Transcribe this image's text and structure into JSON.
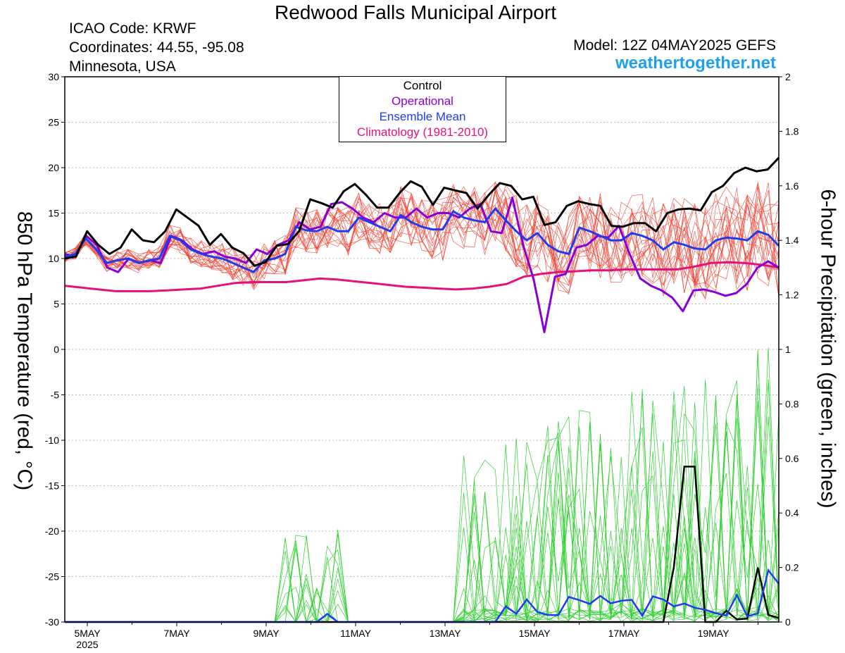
{
  "header": {
    "title": "Redwood Falls Municipal Airport",
    "icao": "ICAO Code: KRWF",
    "coords": "Coordinates: 44.55, -95.08",
    "state": "Minnesota, USA",
    "model": "Model: 12Z 04MAY2025 GEFS",
    "site": "weathertogether.net"
  },
  "colors": {
    "members_temp": "#f04030",
    "members_precip": "#30d030",
    "control": "#000000",
    "operational": "#8a00d4",
    "mean": "#1e3cf0",
    "climatology": "#e8107a",
    "brand": "#1ea0f0"
  },
  "chart_data": {
    "type": "line",
    "ylabel": "850 hPa Temperature (red, °C)",
    "y2label": "6-hour Precipitation (green, inches)",
    "ylim": [
      -30,
      30
    ],
    "y2lim": [
      0,
      2
    ],
    "yticks": [
      "30",
      "25",
      "20",
      "15",
      "10",
      "5",
      "0",
      "-5",
      "-10",
      "-15",
      "-20",
      "-25",
      "-30"
    ],
    "y2ticks": [
      "2",
      "1.8",
      "1.6",
      "1.4",
      "1.2",
      "1",
      "0.8",
      "0.6",
      "0.4",
      "0.2",
      "0"
    ],
    "x_start": "2025-05-04 12Z",
    "x_step_hours": 6,
    "xtick_labels": [
      "5MAY",
      "7MAY",
      "9MAY",
      "11MAY",
      "13MAY",
      "15MAY",
      "17MAY",
      "19MAY"
    ],
    "xtick_year": "2025",
    "legend": [
      "Control",
      "Operational",
      "Ensemble Mean",
      "Climatology (1981-2010)"
    ],
    "grid": true,
    "series": [
      {
        "name": "Control",
        "axis": "temp",
        "values": [
          10,
          10.2,
          13,
          11.5,
          10.5,
          11.2,
          13.2,
          12,
          11.8,
          13,
          15.4,
          14.5,
          13.6,
          11.5,
          12.7,
          11.2,
          10.6,
          9.2,
          9.6,
          11.4,
          11.6,
          13,
          16.5,
          16.1,
          15.6,
          17.4,
          18.2,
          17,
          15.6,
          15.6,
          17.2,
          18.5,
          17.9,
          15.9,
          17.8,
          17.5,
          17.2,
          15.5,
          17,
          18.3,
          18,
          16.5,
          16.8,
          13.7,
          14,
          15.8,
          16.3,
          16,
          15.8,
          13.6,
          13.5,
          13.9,
          13.9,
          13,
          15,
          15.4,
          15.5,
          15.3,
          17.3,
          18,
          19.4,
          20,
          19.6,
          19.8,
          21.1
        ]
      },
      {
        "name": "Operational",
        "axis": "temp",
        "values": [
          10.5,
          10.2,
          12.5,
          11.5,
          9,
          8.5,
          10,
          9.5,
          9.8,
          9.5,
          12.5,
          12,
          11,
          10.5,
          10.8,
          10.2,
          10,
          9.5,
          11,
          10.5,
          11.5,
          12,
          14,
          13.2,
          13.5,
          16,
          16.2,
          15.5,
          14.5,
          14,
          15,
          14.5,
          14.5,
          15.5,
          14.5,
          15,
          15,
          14.5,
          15.5,
          16,
          13,
          12.8,
          16.7,
          11.5,
          7.7,
          1.9,
          8,
          8.3,
          11.2,
          11.5,
          12.5,
          12.3,
          13.6,
          10.5,
          7.8,
          7,
          6.5,
          5.7,
          4.2,
          6.5,
          6.6,
          6.3,
          5.9,
          6.2,
          7.2,
          9,
          9.7,
          9
        ]
      },
      {
        "name": "Ensemble Mean",
        "axis": "temp",
        "values": [
          10.2,
          10.5,
          12.2,
          11,
          9.5,
          9.8,
          10,
          9.5,
          9.8,
          10,
          12.5,
          12,
          11,
          10.5,
          10.2,
          10,
          9.5,
          9,
          8.5,
          9.8,
          10,
          10.5,
          13.5,
          13.1,
          13,
          13.5,
          13,
          13,
          14.5,
          14,
          13.5,
          13,
          14.8,
          14,
          13.5,
          13.2,
          13.2,
          15.2,
          14.5,
          14.2,
          14,
          15.5,
          14.2,
          13,
          12,
          12.8,
          11.5,
          10.8,
          10.5,
          13.4,
          13,
          12.5,
          12,
          12,
          12.8,
          12.5,
          12,
          11,
          11.8,
          11.5,
          11.1,
          11,
          12,
          12.3,
          12.2,
          12,
          13,
          12.6,
          11.4
        ]
      },
      {
        "name": "Climatology (1981-2010)",
        "axis": "temp",
        "values": [
          7,
          6.8,
          6.6,
          6.4,
          6.4,
          6.4,
          6.5,
          6.6,
          6.7,
          7,
          7.3,
          7.4,
          7.4,
          7.4,
          7.6,
          7.8,
          7.7,
          7.5,
          7.3,
          7.1,
          6.9,
          6.8,
          6.7,
          6.6,
          6.7,
          6.9,
          7.2,
          8,
          8.3,
          8.5,
          8.6,
          8.7,
          8.7,
          8.8,
          8.8,
          8.8,
          8.8,
          9.1,
          9.5,
          9.6,
          9.5,
          9.3,
          9
        ]
      }
    ]
  }
}
